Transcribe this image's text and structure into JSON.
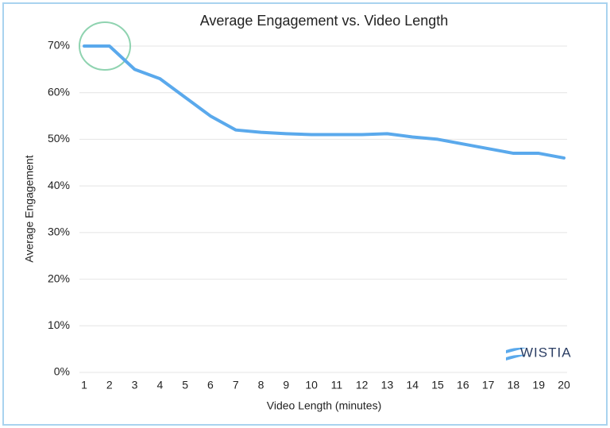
{
  "chart_data": {
    "type": "line",
    "title": "Average Engagement vs. Video Length",
    "x_label": "Video Length (minutes)",
    "y_label": "Average Engagement",
    "x": [
      1,
      2,
      3,
      4,
      5,
      6,
      7,
      8,
      9,
      10,
      11,
      12,
      13,
      14,
      15,
      16,
      17,
      18,
      19,
      20
    ],
    "values": [
      70,
      70,
      65,
      63,
      59,
      55,
      52,
      51.5,
      51.2,
      51,
      51,
      51,
      51.2,
      50.5,
      50,
      49,
      48,
      47,
      47,
      46
    ],
    "color": "#5aa9ec",
    "xlim": [
      1,
      20
    ],
    "xticks": [
      1,
      2,
      3,
      4,
      5,
      6,
      7,
      8,
      9,
      10,
      11,
      12,
      13,
      14,
      15,
      16,
      17,
      18,
      19,
      20
    ],
    "ylim": [
      0,
      70
    ],
    "yticks": [
      {
        "value": 0,
        "label": "0%"
      },
      {
        "value": 10,
        "label": "10%"
      },
      {
        "value": 20,
        "label": "20%"
      },
      {
        "value": 30,
        "label": "30%"
      },
      {
        "value": 40,
        "label": "40%"
      },
      {
        "value": 50,
        "label": "50%"
      },
      {
        "value": 60,
        "label": "60%"
      },
      {
        "value": 70,
        "label": "70%"
      }
    ],
    "grid": true,
    "watermark": "WISTIA"
  }
}
